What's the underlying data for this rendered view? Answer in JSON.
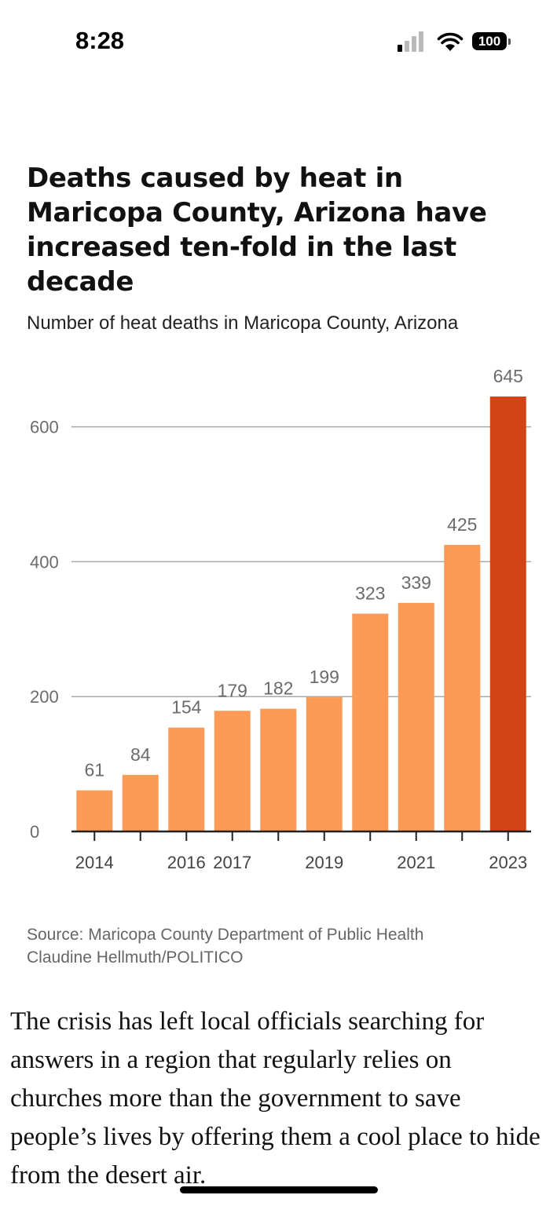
{
  "status_bar": {
    "time": "8:28",
    "battery": "100",
    "icons": [
      "signal-icon",
      "wifi-icon",
      "battery-icon"
    ]
  },
  "chart_data": {
    "type": "bar",
    "title": "Deaths caused by heat in Maricopa County, Arizona have increased ten-fold in the last decade",
    "subtitle": "Number of heat deaths in Maricopa County, Arizona",
    "categories": [
      "2014",
      "2015",
      "2016",
      "2017",
      "2018",
      "2019",
      "2020",
      "2021",
      "2022",
      "2023"
    ],
    "values": [
      61,
      84,
      154,
      179,
      182,
      199,
      323,
      339,
      425,
      645
    ],
    "x_tick_labels": [
      "2014",
      "",
      "2016",
      "2017",
      "",
      "2019",
      "",
      "2021",
      "",
      "2023"
    ],
    "ylim": [
      0,
      645
    ],
    "yticks": [
      0,
      200,
      400,
      600
    ],
    "grid": true,
    "xlabel": "",
    "ylabel": "",
    "colors": {
      "bar": "#fd9b56",
      "highlight": "#d24317",
      "grid": "#a9a9a9",
      "axis": "#222222",
      "label": "#6b6b6b"
    },
    "highlight_index": 9
  },
  "source": {
    "line1": "Source: Maricopa County Department of Public Health",
    "line2": "Claudine Hellmuth/POLITICO"
  },
  "article": {
    "paragraph": "The crisis has left local officials searching for answers in a region that regularly relies on churches more than the government to save people’s lives by offering them a cool place to hide from the desert air."
  }
}
